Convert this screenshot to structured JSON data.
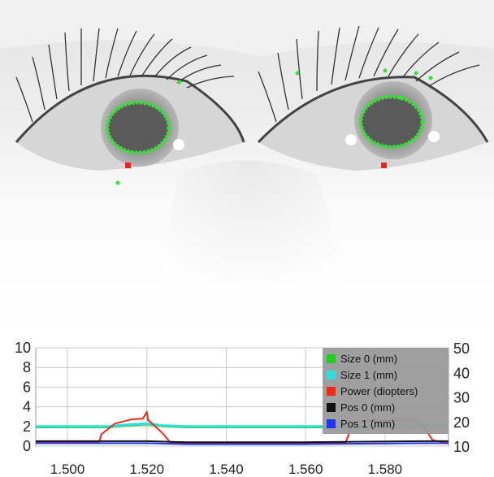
{
  "screen": {
    "title": "",
    "camera": {
      "detection_color": "#2ee62e",
      "marker_color": "#ee2222"
    }
  },
  "colors": {
    "size0": "#22cc22",
    "size1": "#33dddd",
    "power": "#ee2a1a",
    "pos0": "#111111",
    "pos1": "#2233ee",
    "legend_bg": "#9a9a9a",
    "grid": "#c8c8c8"
  },
  "chart_data": {
    "type": "line",
    "x_ticks": [
      "1.500",
      "1.520",
      "1.540",
      "1.560",
      "1.580"
    ],
    "x_tick_values": [
      1.5,
      1.52,
      1.54,
      1.56,
      1.58
    ],
    "xlim": [
      1.492,
      1.596
    ],
    "y_left_ticks": [
      "0",
      "2",
      "4",
      "6",
      "8",
      "10"
    ],
    "y_left_lim": [
      0,
      10
    ],
    "y_right_ticks": [
      "10",
      "20",
      "30",
      "40",
      "50"
    ],
    "y_right_lim": [
      10,
      50
    ],
    "grid": true,
    "legend_position": "top-right",
    "series": [
      {
        "name": "Size 0 (mm)",
        "color_key": "size0",
        "axis": "left",
        "x": [
          1.492,
          1.51,
          1.516,
          1.52,
          1.524,
          1.53,
          1.56,
          1.576,
          1.582,
          1.596
        ],
        "y": [
          1.9,
          1.9,
          2.1,
          2.2,
          2.0,
          1.9,
          1.9,
          1.9,
          2.0,
          2.0
        ]
      },
      {
        "name": "Size 1 (mm)",
        "color_key": "size1",
        "axis": "left",
        "x": [
          1.492,
          1.51,
          1.516,
          1.52,
          1.524,
          1.53,
          1.56,
          1.576,
          1.582,
          1.596
        ],
        "y": [
          2.0,
          2.0,
          2.2,
          2.3,
          2.1,
          2.0,
          2.0,
          2.0,
          2.1,
          2.1
        ]
      },
      {
        "name": "Power (diopters)",
        "color_key": "power",
        "axis": "left",
        "x": [
          1.492,
          1.508,
          1.5085,
          1.512,
          1.516,
          1.519,
          1.52,
          1.5203,
          1.5205,
          1.524,
          1.526,
          1.53,
          1.56,
          1.57,
          1.572,
          1.573,
          1.576,
          1.58,
          1.584,
          1.588,
          1.59,
          1.592,
          1.596
        ],
        "y": [
          0.4,
          0.4,
          1.2,
          2.3,
          2.7,
          2.8,
          3.5,
          2.6,
          2.6,
          1.3,
          0.3,
          0.3,
          0.3,
          0.3,
          2.4,
          2.5,
          2.6,
          2.6,
          2.6,
          2.6,
          1.8,
          0.6,
          0.3
        ]
      },
      {
        "name": "Pos 0 (mm)",
        "color_key": "pos0",
        "axis": "left",
        "x": [
          1.492,
          1.52,
          1.53,
          1.56,
          1.59,
          1.596
        ],
        "y": [
          0.5,
          0.5,
          0.4,
          0.4,
          0.5,
          0.5
        ]
      },
      {
        "name": "Pos 1 (mm)",
        "color_key": "pos1",
        "axis": "left",
        "x": [
          1.492,
          1.52,
          1.53,
          1.56,
          1.59,
          1.596
        ],
        "y": [
          0.3,
          0.3,
          0.2,
          0.2,
          0.3,
          0.3
        ]
      }
    ]
  }
}
